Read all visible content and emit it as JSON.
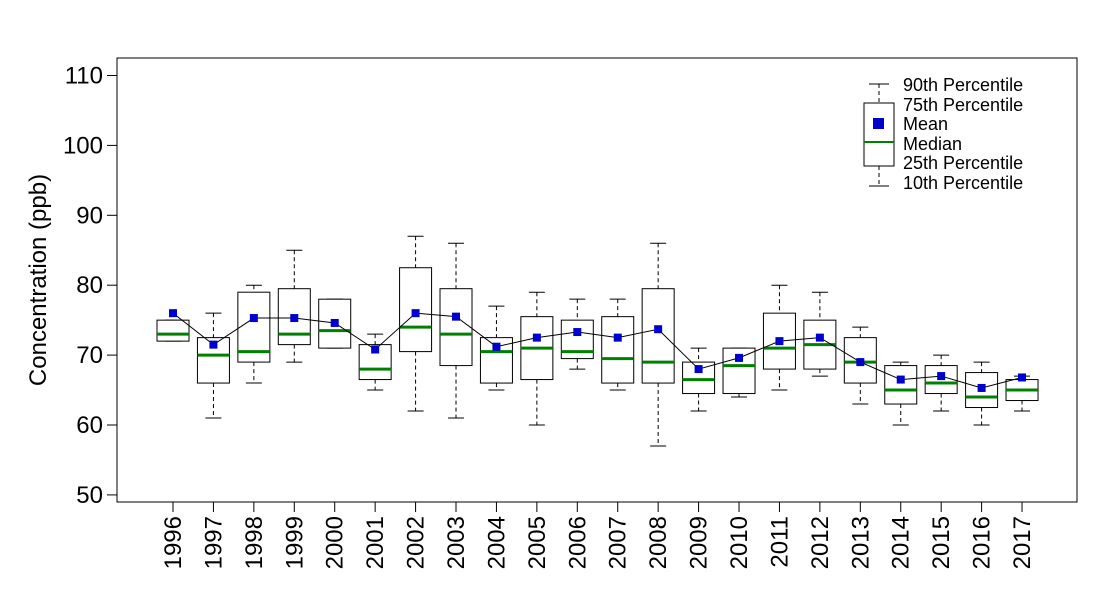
{
  "chart_data": {
    "type": "boxplot",
    "title": "",
    "xlabel": "",
    "ylabel": "Concentration (ppb)",
    "ylim": [
      47,
      112
    ],
    "yticks": [
      50,
      60,
      70,
      80,
      90,
      100,
      110
    ],
    "categories": [
      "1996",
      "1997",
      "1998",
      "1999",
      "2000",
      "2001",
      "2002",
      "2003",
      "2004",
      "2005",
      "2006",
      "2007",
      "2008",
      "2009",
      "2010",
      "2011",
      "2012",
      "2013",
      "2014",
      "2015",
      "2016",
      "2017"
    ],
    "p10": [
      72,
      61,
      66,
      69,
      71,
      65,
      62,
      61,
      65,
      60,
      68,
      65,
      57,
      62,
      64,
      65,
      67,
      63,
      60,
      62,
      60,
      62
    ],
    "p25": [
      72,
      66,
      69,
      71.5,
      71,
      66.5,
      70.5,
      68.5,
      66,
      66.5,
      69.5,
      66,
      66,
      64.5,
      64.5,
      68,
      68,
      66,
      63,
      64.5,
      62.5,
      63.5
    ],
    "median": [
      73,
      70,
      70.5,
      73,
      73.5,
      68,
      74,
      73,
      70.5,
      71,
      70.5,
      69.5,
      69,
      66.5,
      68.5,
      71,
      71.5,
      69,
      65,
      66,
      64,
      65
    ],
    "mean": [
      76,
      71.5,
      75.3,
      75.3,
      74.6,
      70.8,
      76,
      75.5,
      71.2,
      72.5,
      73.3,
      72.5,
      73.7,
      68,
      69.6,
      72,
      72.5,
      69,
      66.5,
      67,
      65.3,
      66.8
    ],
    "p75": [
      75,
      72.5,
      79,
      79.5,
      78,
      71.5,
      82.5,
      79.5,
      72.5,
      75.5,
      75,
      75.5,
      79.5,
      69,
      71,
      76,
      75,
      72.5,
      68.5,
      68.5,
      67.5,
      66.5
    ],
    "p90": [
      75,
      76,
      80,
      85,
      78,
      73,
      87,
      86,
      77,
      79,
      78,
      78,
      86,
      71,
      71,
      80,
      79,
      74,
      69,
      70,
      69,
      67
    ],
    "legend": {
      "position": "top-right",
      "items": [
        "90th Percentile",
        "75th Percentile",
        "Mean",
        "Median",
        "25th Percentile",
        "10th Percentile"
      ]
    },
    "colors": {
      "median": "#008000",
      "mean": "#0000CC",
      "box": "#000000",
      "line": "#000000"
    }
  }
}
